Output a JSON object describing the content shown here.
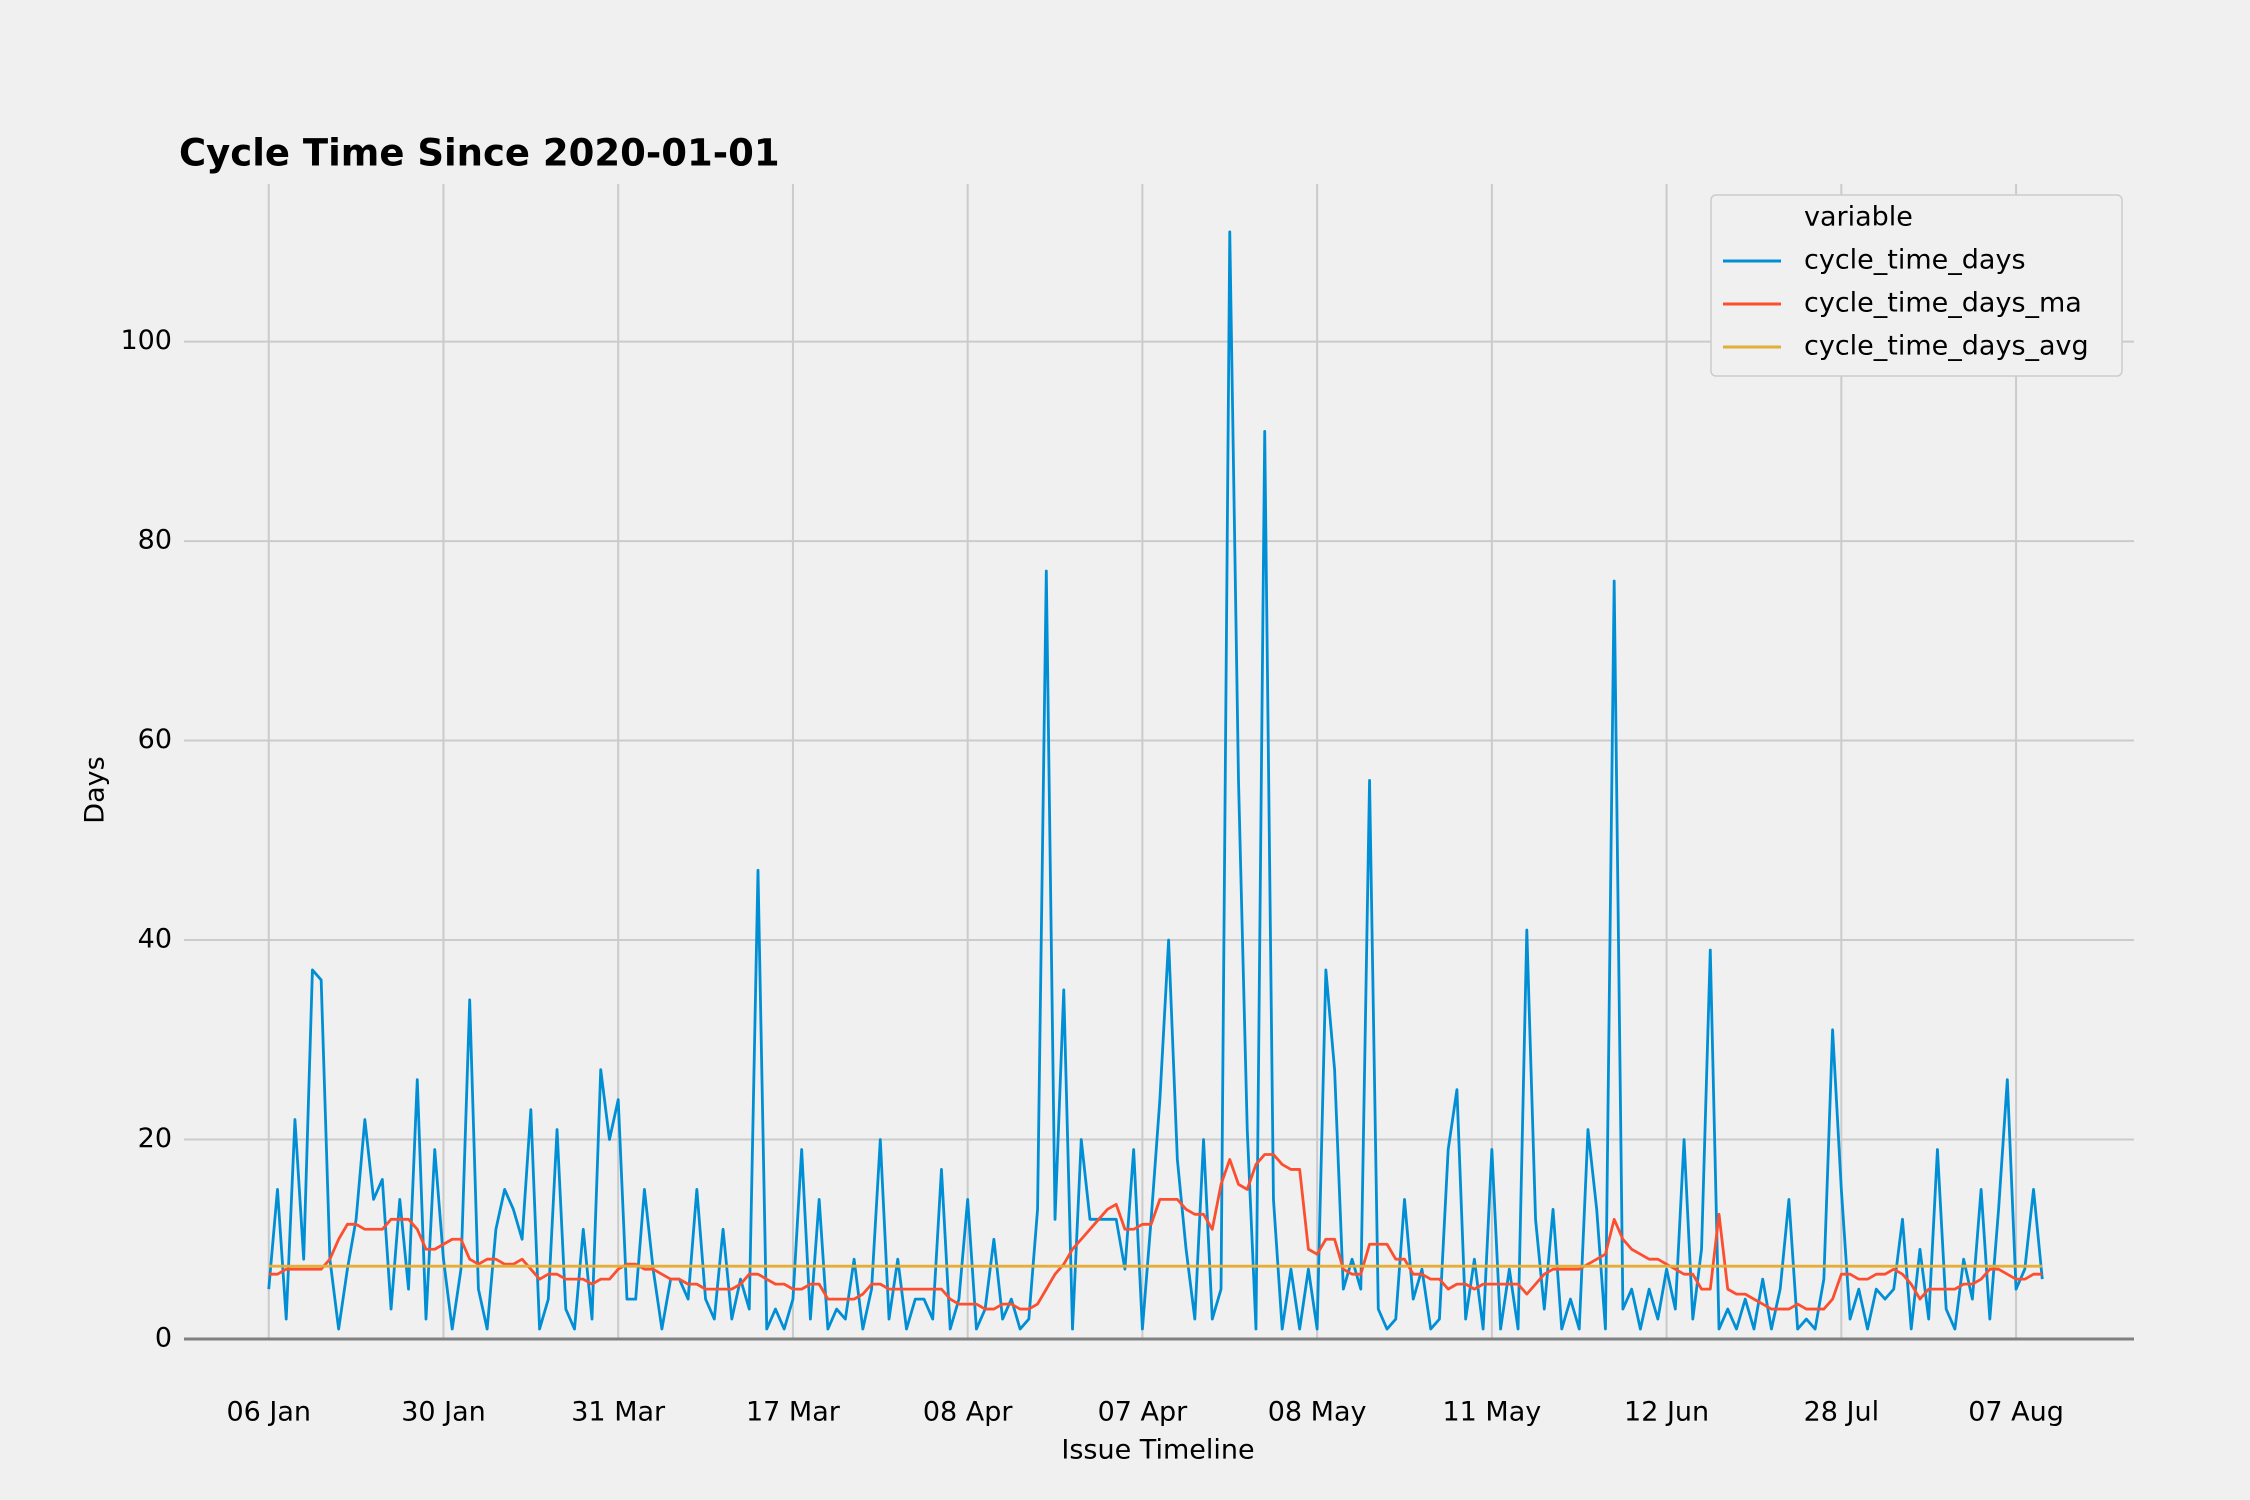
{
  "chart_data": {
    "type": "line",
    "title": "Cycle Time Since 2020-01-01",
    "xlabel": "Issue Timeline",
    "ylabel": "Days",
    "legend_title": "variable",
    "legend": "upper right",
    "grid": true,
    "xlim": [
      -9.7,
      213.5
    ],
    "ylim": [
      0,
      115.8
    ],
    "yticks": [
      0,
      20,
      40,
      60,
      80,
      100
    ],
    "xticks": [
      {
        "value": 0,
        "label": "06 Jan"
      },
      {
        "value": 20,
        "label": "30 Jan"
      },
      {
        "value": 40,
        "label": "31 Mar"
      },
      {
        "value": 60,
        "label": "17 Mar"
      },
      {
        "value": 80,
        "label": "08 Apr"
      },
      {
        "value": 100,
        "label": "07 Apr"
      },
      {
        "value": 120,
        "label": "08 May"
      },
      {
        "value": 140,
        "label": "11 May"
      },
      {
        "value": 160,
        "label": "12 Jun"
      },
      {
        "value": 180,
        "label": "28 Jul"
      },
      {
        "value": 200,
        "label": "07 Aug"
      }
    ],
    "series": [
      {
        "name": "cycle_time_days",
        "color": "#008fd5",
        "values": [
          5,
          15,
          2,
          22,
          8,
          37,
          36,
          8,
          1,
          7,
          12,
          22,
          14,
          16,
          3,
          14,
          5,
          26,
          2,
          19,
          8,
          1,
          7,
          34,
          5,
          1,
          11,
          15,
          13,
          10,
          23,
          1,
          4,
          21,
          3,
          1,
          11,
          2,
          27,
          20,
          24,
          4,
          4,
          15,
          7,
          1,
          6,
          6,
          4,
          15,
          4,
          2,
          11,
          2,
          6,
          3,
          47,
          1,
          3,
          1,
          4,
          19,
          2,
          14,
          1,
          3,
          2,
          8,
          1,
          5,
          20,
          2,
          8,
          1,
          4,
          4,
          2,
          17,
          1,
          4,
          14,
          1,
          3,
          10,
          2,
          4,
          1,
          2,
          13,
          77,
          12,
          35,
          1,
          20,
          12,
          12,
          12,
          12,
          7,
          19,
          1,
          12,
          24,
          40,
          18,
          9,
          2,
          20,
          2,
          5,
          111,
          56,
          21,
          1,
          91,
          14,
          1,
          7,
          1,
          7,
          1,
          37,
          27,
          5,
          8,
          5,
          56,
          3,
          1,
          2,
          14,
          4,
          7,
          1,
          2,
          19,
          25,
          2,
          8,
          1,
          19,
          1,
          7,
          1,
          41,
          12,
          3,
          13,
          1,
          4,
          1,
          21,
          13,
          1,
          76,
          3,
          5,
          1,
          5,
          2,
          7,
          3,
          20,
          2,
          9,
          39,
          1,
          3,
          1,
          4,
          1,
          6,
          1,
          5,
          14,
          1,
          2,
          1,
          6,
          31,
          15,
          2,
          5,
          1,
          5,
          4,
          5,
          12,
          1,
          9,
          2,
          19,
          3,
          1,
          8,
          4,
          15,
          2,
          13,
          26,
          5,
          7,
          15,
          6
        ]
      },
      {
        "name": "cycle_time_days_ma",
        "color": "#fc4f30",
        "values": [
          6.5,
          6.5,
          7,
          7,
          7,
          7,
          7,
          8,
          10,
          11.5,
          11.5,
          11,
          11,
          11,
          12,
          12,
          12,
          11,
          9,
          9,
          9.5,
          10,
          10,
          8,
          7.5,
          8,
          8,
          7.5,
          7.5,
          8,
          7,
          6,
          6.5,
          6.5,
          6,
          6,
          6,
          5.5,
          6,
          6,
          7,
          7.5,
          7.5,
          7,
          7,
          6.5,
          6,
          6,
          5.5,
          5.5,
          5,
          5,
          5,
          5,
          5.5,
          6.5,
          6.5,
          6,
          5.5,
          5.5,
          5,
          5,
          5.5,
          5.5,
          4,
          4,
          4,
          4,
          4.5,
          5.5,
          5.5,
          5,
          5,
          5,
          5,
          5,
          5,
          5,
          4,
          3.5,
          3.5,
          3.5,
          3,
          3,
          3.5,
          3.5,
          3,
          3,
          3.5,
          5,
          6.5,
          7.5,
          9,
          10,
          11,
          12,
          13,
          13.5,
          11,
          11,
          11.5,
          11.5,
          14,
          14,
          14,
          13,
          12.5,
          12.5,
          11,
          15.5,
          18,
          15.5,
          15,
          17.5,
          18.5,
          18.5,
          17.5,
          17,
          17,
          9,
          8.5,
          10,
          10,
          7,
          6.5,
          6.5,
          9.5,
          9.5,
          9.5,
          8,
          8,
          6.5,
          6.5,
          6,
          6,
          5,
          5.5,
          5.5,
          5,
          5.5,
          5.5,
          5.5,
          5.5,
          5.5,
          4.5,
          5.5,
          6.5,
          7,
          7,
          7,
          7,
          7.5,
          8,
          8.5,
          12,
          10,
          9,
          8.5,
          8,
          8,
          7.5,
          7,
          6.5,
          6.5,
          5,
          5,
          12.5,
          5,
          4.5,
          4.5,
          4,
          3.5,
          3,
          3,
          3,
          3.5,
          3,
          3,
          3,
          4,
          6.5,
          6.5,
          6,
          6,
          6.5,
          6.5,
          7,
          6.5,
          5.5,
          4,
          5,
          5,
          5,
          5,
          5.5,
          5.5,
          6,
          7,
          7,
          6.5,
          6,
          6,
          6.5,
          6.5
        ]
      },
      {
        "name": "cycle_time_days_avg",
        "color": "#e5ae38",
        "values": [
          7.3,
          7.3,
          7.3,
          7.3,
          7.3,
          7.3,
          7.3,
          7.3,
          7.3,
          7.3,
          7.3,
          7.3,
          7.3,
          7.3,
          7.3,
          7.3,
          7.3,
          7.3,
          7.3,
          7.3,
          7.3,
          7.3,
          7.3,
          7.3,
          7.3,
          7.3,
          7.3,
          7.3,
          7.3,
          7.3,
          7.3,
          7.3,
          7.3,
          7.3,
          7.3,
          7.3,
          7.3,
          7.3,
          7.3,
          7.3,
          7.3,
          7.3,
          7.3,
          7.3,
          7.3,
          7.3,
          7.3,
          7.3,
          7.3,
          7.3,
          7.3,
          7.3,
          7.3,
          7.3,
          7.3,
          7.3,
          7.3,
          7.3,
          7.3,
          7.3,
          7.3,
          7.3,
          7.3,
          7.3,
          7.3,
          7.3,
          7.3,
          7.3,
          7.3,
          7.3,
          7.3,
          7.3,
          7.3,
          7.3,
          7.3,
          7.3,
          7.3,
          7.3,
          7.3,
          7.3,
          7.3,
          7.3,
          7.3,
          7.3,
          7.3,
          7.3,
          7.3,
          7.3,
          7.3,
          7.3,
          7.3,
          7.3,
          7.3,
          7.3,
          7.3,
          7.3,
          7.3,
          7.3,
          7.3,
          7.3,
          7.3,
          7.3,
          7.3,
          7.3,
          7.3,
          7.3,
          7.3,
          7.3,
          7.3,
          7.3,
          7.3,
          7.3,
          7.3,
          7.3,
          7.3,
          7.3,
          7.3,
          7.3,
          7.3,
          7.3,
          7.3,
          7.3,
          7.3,
          7.3,
          7.3,
          7.3,
          7.3,
          7.3,
          7.3,
          7.3,
          7.3,
          7.3,
          7.3,
          7.3,
          7.3,
          7.3,
          7.3,
          7.3,
          7.3,
          7.3,
          7.3,
          7.3,
          7.3,
          7.3,
          7.3,
          7.3,
          7.3,
          7.3,
          7.3,
          7.3,
          7.3,
          7.3,
          7.3,
          7.3,
          7.3,
          7.3,
          7.3,
          7.3,
          7.3,
          7.3,
          7.3,
          7.3,
          7.3,
          7.3,
          7.3,
          7.3,
          7.3,
          7.3,
          7.3,
          7.3,
          7.3,
          7.3,
          7.3,
          7.3,
          7.3,
          7.3,
          7.3,
          7.3,
          7.3,
          7.3,
          7.3,
          7.3,
          7.3,
          7.3,
          7.3,
          7.3,
          7.3,
          7.3,
          7.3,
          7.3,
          7.3,
          7.3,
          7.3,
          7.3,
          7.3,
          7.3,
          7.3,
          7.3,
          7.3,
          7.3,
          7.3,
          7.3,
          7.3,
          7.3
        ]
      }
    ]
  }
}
